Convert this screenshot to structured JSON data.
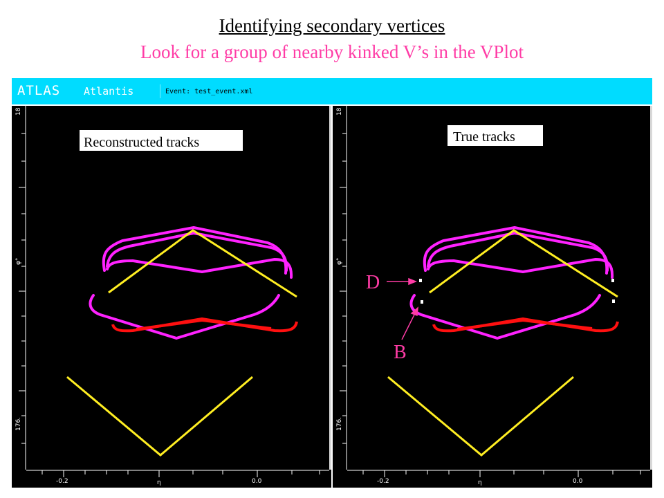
{
  "slide": {
    "title": "Identifying secondary vertices",
    "subtitle": "Look for a group of nearby kinked V’s in the VPlot"
  },
  "atlantis": {
    "logo": "ATLAS",
    "app_name": "Atlantis",
    "event": "Event: test_event.xml"
  },
  "panels": [
    {
      "label": "Reconstructed tracks",
      "y_axis_top": "18",
      "y_axis_mid": "φ°",
      "y_axis_bottom": "176.",
      "x_ticks": [
        "-0.2",
        "η",
        "0.0"
      ]
    },
    {
      "label": "True tracks",
      "y_axis_top": "18",
      "y_axis_mid": "φ°",
      "y_axis_bottom": "176.",
      "x_ticks": [
        "-0.2",
        "η",
        "0.0"
      ]
    }
  ],
  "annotations": {
    "d": "D",
    "b": "B"
  },
  "colors": {
    "header": "#00dcff",
    "background": "#000000",
    "magenta_tracks": "#ff22ff",
    "yellow_tracks": "#ffee22",
    "red_tracks": "#ff1010",
    "annotation": "#ff3ca6"
  }
}
